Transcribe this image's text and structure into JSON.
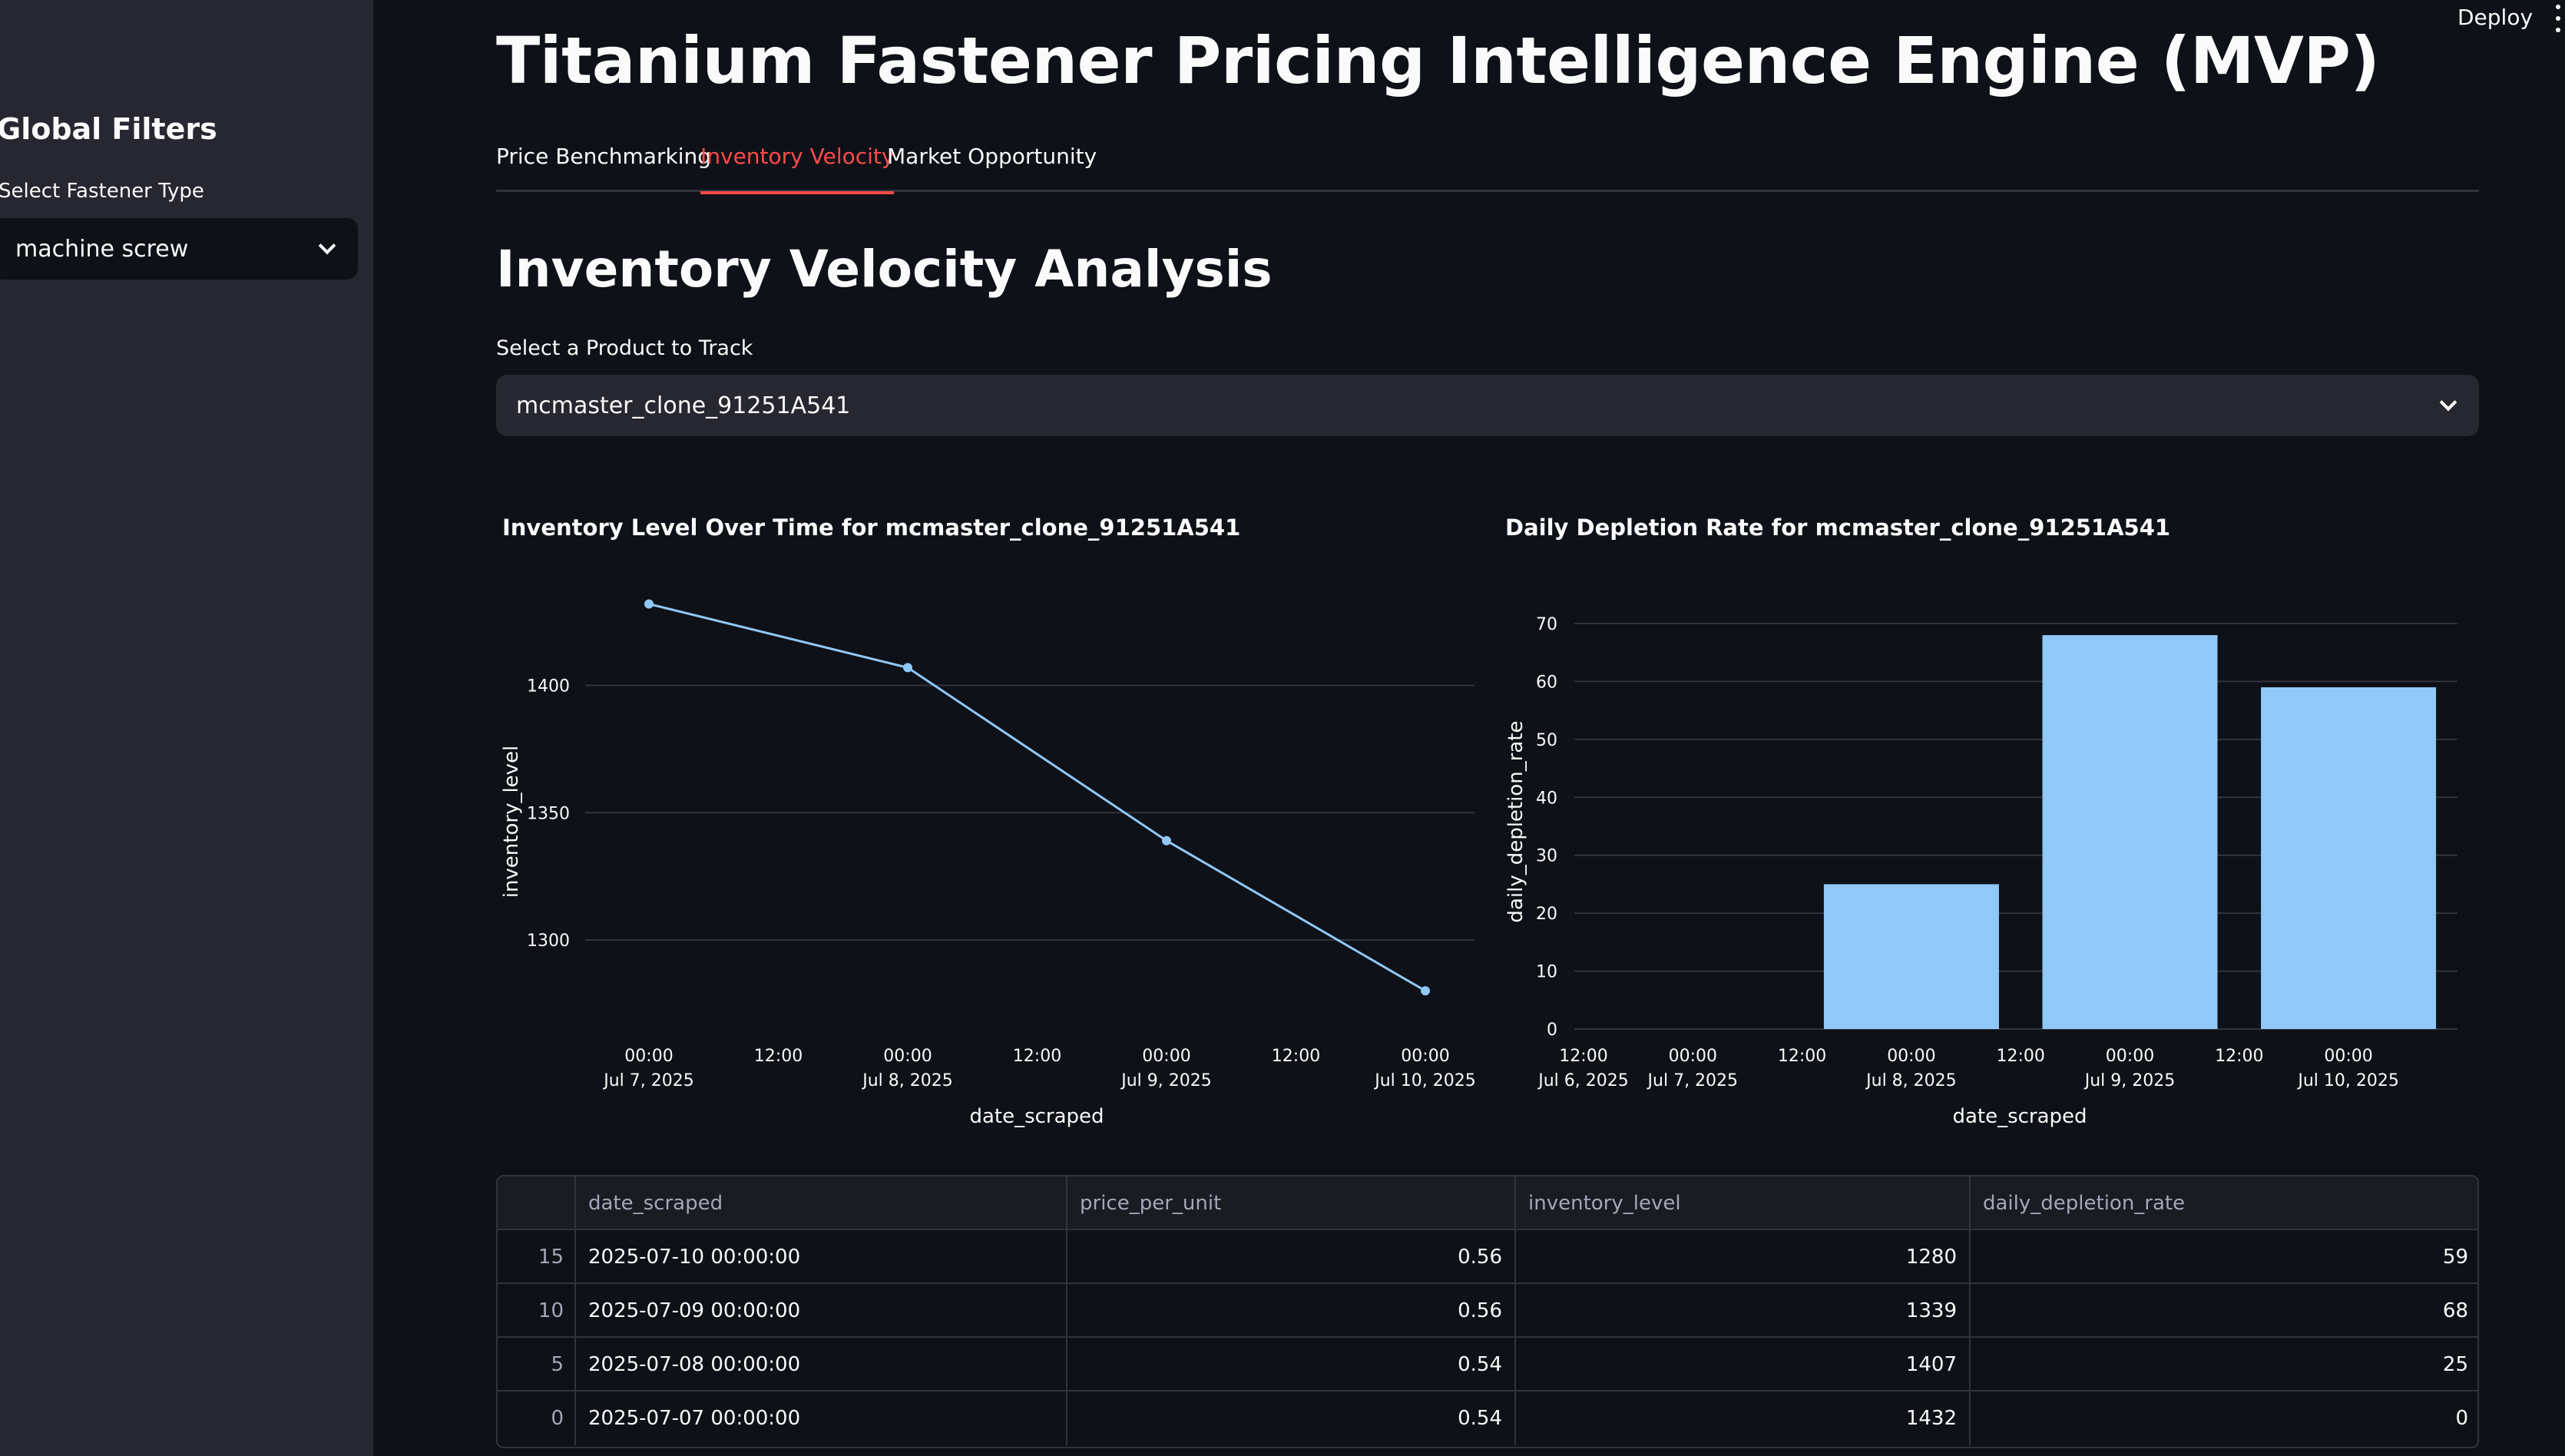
{
  "sidebar": {
    "title": "Global Filters",
    "select_label": "Select Fastener Type",
    "select_value": "machine screw"
  },
  "header": {
    "deploy_label": "Deploy",
    "menu_icon": "kebab-menu-icon"
  },
  "main": {
    "title": "Titanium Fastener Pricing Intelligence Engine (MVP)",
    "tabs": [
      {
        "label": "Price Benchmarking",
        "active": false
      },
      {
        "label": "Inventory Velocity",
        "active": true
      },
      {
        "label": "Market Opportunity",
        "active": false
      }
    ],
    "section_title": "Inventory Velocity Analysis",
    "product_select_label": "Select a Product to Track",
    "product_select_value": "mcmaster_clone_91251A541"
  },
  "colors": {
    "accent": "#ff4b4b",
    "series": "#90c8f8",
    "background": "#0e1117",
    "sidebar": "#262730"
  },
  "chart_data": [
    {
      "type": "line",
      "title": "Inventory Level Over Time for mcmaster_clone_91251A541",
      "xlabel": "date_scraped",
      "ylabel": "inventory_level",
      "x": [
        "2025-07-07 00:00",
        "2025-07-08 00:00",
        "2025-07-09 00:00",
        "2025-07-10 00:00"
      ],
      "values": [
        1432,
        1407,
        1339,
        1280
      ],
      "ylim": [
        1268,
        1440
      ],
      "yticks": [
        1300,
        1350,
        1400
      ],
      "xticks": [
        {
          "time": "00:00",
          "date": "Jul 7, 2025"
        },
        {
          "time": "12:00",
          "date": ""
        },
        {
          "time": "00:00",
          "date": "Jul 8, 2025"
        },
        {
          "time": "12:00",
          "date": ""
        },
        {
          "time": "00:00",
          "date": "Jul 9, 2025"
        },
        {
          "time": "12:00",
          "date": ""
        },
        {
          "time": "00:00",
          "date": "Jul 10, 2025"
        }
      ],
      "grid": true
    },
    {
      "type": "bar",
      "title": "Daily Depletion Rate for mcmaster_clone_91251A541",
      "xlabel": "date_scraped",
      "ylabel": "daily_depletion_rate",
      "x": [
        "2025-07-07 00:00",
        "2025-07-08 00:00",
        "2025-07-09 00:00",
        "2025-07-10 00:00"
      ],
      "values": [
        0,
        25,
        68,
        59
      ],
      "ylim": [
        0,
        70
      ],
      "yticks": [
        0,
        10,
        20,
        30,
        40,
        50,
        60,
        70
      ],
      "xticks": [
        {
          "time": "12:00",
          "date": "Jul 6, 2025"
        },
        {
          "time": "00:00",
          "date": "Jul 7, 2025"
        },
        {
          "time": "12:00",
          "date": ""
        },
        {
          "time": "00:00",
          "date": "Jul 8, 2025"
        },
        {
          "time": "12:00",
          "date": ""
        },
        {
          "time": "00:00",
          "date": "Jul 9, 2025"
        },
        {
          "time": "12:00",
          "date": ""
        },
        {
          "time": "00:00",
          "date": "Jul 10, 2025"
        }
      ],
      "grid": true
    }
  ],
  "table": {
    "columns": [
      "",
      "date_scraped",
      "price_per_unit",
      "inventory_level",
      "daily_depletion_rate"
    ],
    "rows": [
      {
        "index": "15",
        "date_scraped": "2025-07-10 00:00:00",
        "price_per_unit": "0.56",
        "inventory_level": "1280",
        "daily_depletion_rate": "59"
      },
      {
        "index": "10",
        "date_scraped": "2025-07-09 00:00:00",
        "price_per_unit": "0.56",
        "inventory_level": "1339",
        "daily_depletion_rate": "68"
      },
      {
        "index": "5",
        "date_scraped": "2025-07-08 00:00:00",
        "price_per_unit": "0.54",
        "inventory_level": "1407",
        "daily_depletion_rate": "25"
      },
      {
        "index": "0",
        "date_scraped": "2025-07-07 00:00:00",
        "price_per_unit": "0.54",
        "inventory_level": "1432",
        "daily_depletion_rate": "0"
      }
    ]
  }
}
